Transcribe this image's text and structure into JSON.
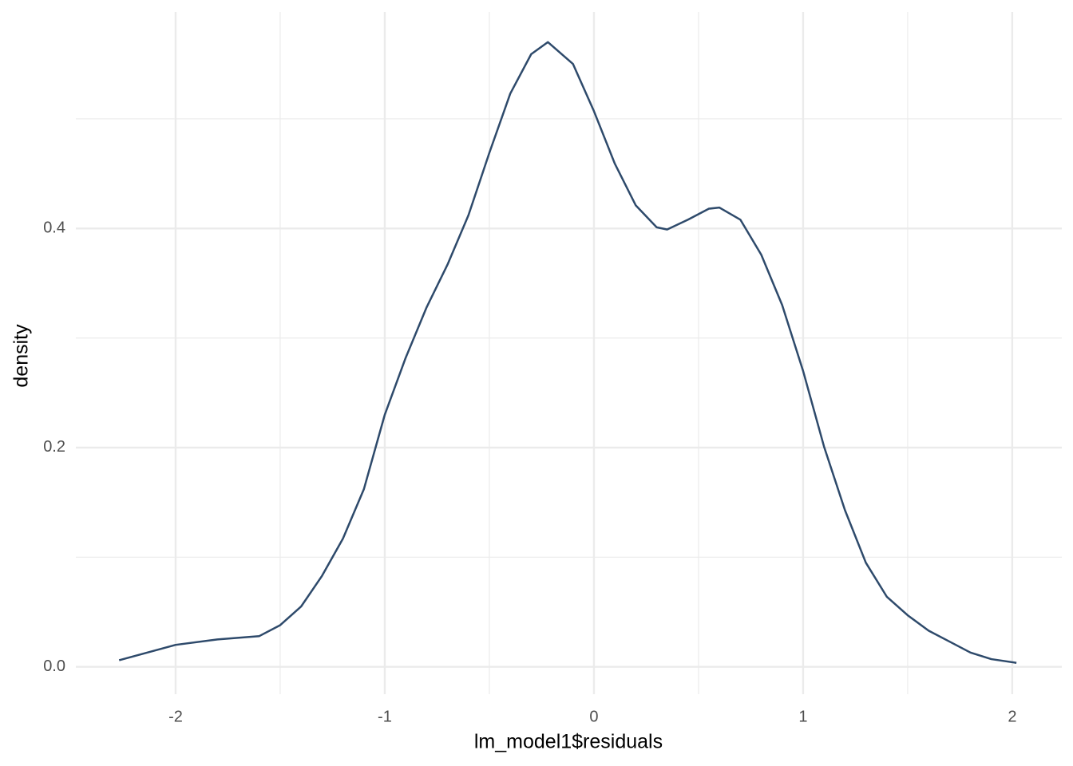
{
  "chart_data": {
    "type": "line",
    "x_label": "lm_model1$residuals",
    "y_label": "density",
    "grid": true,
    "series": [
      {
        "color": "#2e4a6b",
        "x": [
          -2.27,
          -2.0,
          -1.8,
          -1.6,
          -1.5,
          -1.4,
          -1.3,
          -1.2,
          -1.1,
          -1.0,
          -0.9,
          -0.8,
          -0.7,
          -0.6,
          -0.5,
          -0.4,
          -0.3,
          -0.22,
          -0.1,
          0.0,
          0.1,
          0.2,
          0.3,
          0.35,
          0.45,
          0.55,
          0.6,
          0.7,
          0.8,
          0.9,
          1.0,
          1.1,
          1.2,
          1.3,
          1.4,
          1.5,
          1.6,
          1.7,
          1.8,
          1.9,
          2.02
        ],
        "values": [
          0.006,
          0.02,
          0.025,
          0.028,
          0.038,
          0.055,
          0.083,
          0.117,
          0.162,
          0.23,
          0.282,
          0.328,
          0.367,
          0.412,
          0.469,
          0.523,
          0.559,
          0.57,
          0.55,
          0.507,
          0.459,
          0.421,
          0.401,
          0.399,
          0.408,
          0.418,
          0.419,
          0.408,
          0.376,
          0.33,
          0.27,
          0.201,
          0.143,
          0.095,
          0.064,
          0.047,
          0.033,
          0.023,
          0.013,
          0.007,
          0.0036
        ]
      }
    ],
    "xlim": [
      -2.477,
      2.237
    ],
    "ylim": [
      -0.025,
      0.5975
    ],
    "xticks": [
      -2,
      -1,
      0,
      1,
      2
    ],
    "yticks": [
      {
        "value": 0,
        "label": "0.0"
      },
      0.2,
      0.4
    ],
    "xminorticks": [
      -1.5,
      -0.5,
      0.5,
      1.5
    ],
    "yminorticks": [
      0.1,
      0.3,
      0.5
    ]
  }
}
